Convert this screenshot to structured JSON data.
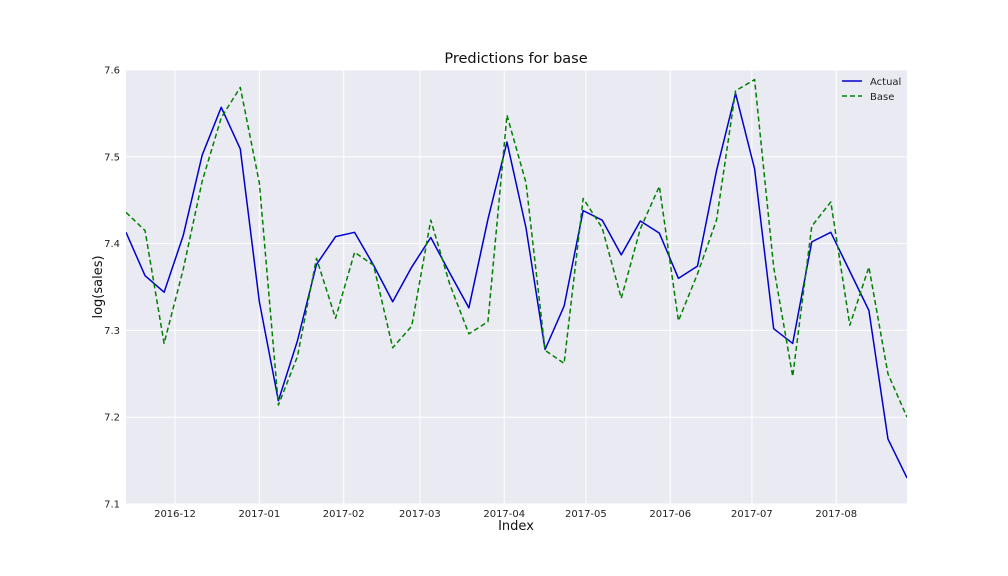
{
  "chart_data": {
    "type": "line",
    "title": "Predictions for base",
    "xlabel": "Index",
    "ylabel": "log(sales)",
    "ylim": [
      7.1,
      7.6
    ],
    "yticks": [
      "7.1",
      "7.2",
      "7.3",
      "7.4",
      "7.5",
      "7.6"
    ],
    "xlim": [
      "2016-11-13",
      "2017-08-27"
    ],
    "xticks": [
      {
        "date": "2016-12-01",
        "label": "2016-12"
      },
      {
        "date": "2017-01-01",
        "label": "2017-01"
      },
      {
        "date": "2017-02-01",
        "label": "2017-02"
      },
      {
        "date": "2017-03-01",
        "label": "2017-03"
      },
      {
        "date": "2017-04-01",
        "label": "2017-04"
      },
      {
        "date": "2017-05-01",
        "label": "2017-05"
      },
      {
        "date": "2017-06-01",
        "label": "2017-06"
      },
      {
        "date": "2017-07-01",
        "label": "2017-07"
      },
      {
        "date": "2017-08-01",
        "label": "2017-08"
      }
    ],
    "grid": true,
    "legend_position": "top-right",
    "x": [
      "2016-11-13",
      "2016-11-20",
      "2016-11-27",
      "2016-12-04",
      "2016-12-11",
      "2016-12-18",
      "2016-12-25",
      "2017-01-01",
      "2017-01-08",
      "2017-01-15",
      "2017-01-22",
      "2017-01-29",
      "2017-02-05",
      "2017-02-12",
      "2017-02-19",
      "2017-02-26",
      "2017-03-05",
      "2017-03-12",
      "2017-03-19",
      "2017-03-26",
      "2017-04-02",
      "2017-04-09",
      "2017-04-16",
      "2017-04-23",
      "2017-04-30",
      "2017-05-07",
      "2017-05-14",
      "2017-05-21",
      "2017-05-28",
      "2017-06-04",
      "2017-06-11",
      "2017-06-18",
      "2017-06-25",
      "2017-07-02",
      "2017-07-09",
      "2017-07-16",
      "2017-07-23",
      "2017-07-30",
      "2017-08-06",
      "2017-08-13",
      "2017-08-20",
      "2017-08-27"
    ],
    "series": [
      {
        "name": "Actual",
        "color": "#0000cc",
        "style": "solid",
        "values": [
          7.413,
          7.363,
          7.344,
          7.409,
          7.502,
          7.557,
          7.509,
          7.333,
          7.219,
          7.288,
          7.376,
          7.408,
          7.413,
          7.375,
          7.333,
          7.373,
          7.407,
          7.366,
          7.326,
          7.428,
          7.517,
          7.418,
          7.278,
          7.328,
          7.438,
          7.427,
          7.387,
          7.426,
          7.412,
          7.36,
          7.374,
          7.484,
          7.573,
          7.486,
          7.302,
          7.285,
          7.402,
          7.413,
          7.368,
          7.323,
          7.175,
          7.13
        ]
      },
      {
        "name": "Base",
        "color": "#008000",
        "style": "dashed",
        "values": [
          7.436,
          7.415,
          7.285,
          7.37,
          7.472,
          7.545,
          7.58,
          7.47,
          7.214,
          7.27,
          7.383,
          7.314,
          7.39,
          7.375,
          7.28,
          7.305,
          7.427,
          7.353,
          7.296,
          7.31,
          7.548,
          7.47,
          7.277,
          7.262,
          7.452,
          7.418,
          7.337,
          7.417,
          7.466,
          7.311,
          7.365,
          7.427,
          7.576,
          7.589,
          7.373,
          7.247,
          7.42,
          7.448,
          7.306,
          7.373,
          7.25,
          7.2
        ]
      }
    ]
  }
}
